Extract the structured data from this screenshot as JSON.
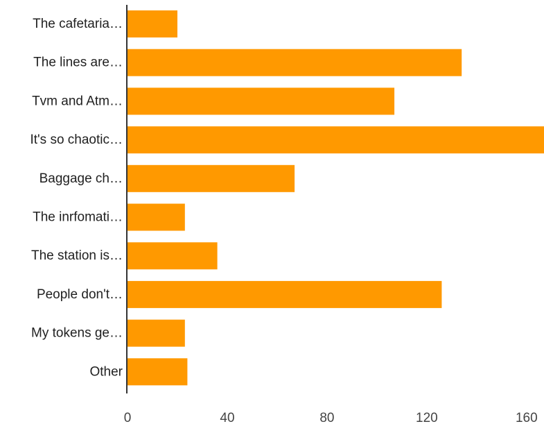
{
  "chart_data": {
    "type": "bar",
    "orientation": "horizontal",
    "categories": [
      "The cafetaria…",
      "The lines are…",
      "Tvm and Atm…",
      "It's so chaotic…",
      "Baggage ch…",
      "The inrfomati…",
      "The station is…",
      "People don't…",
      "My tokens ge…",
      "Other"
    ],
    "values": [
      20,
      134,
      107,
      167,
      67,
      23,
      36,
      126,
      23,
      24
    ],
    "xlim": [
      0,
      167
    ],
    "xticks": [
      0,
      40,
      80,
      120,
      160
    ],
    "title": "",
    "xlabel": "",
    "ylabel": "",
    "grid": false,
    "bar_color": "#FF9900",
    "axis_color": "#333333"
  }
}
